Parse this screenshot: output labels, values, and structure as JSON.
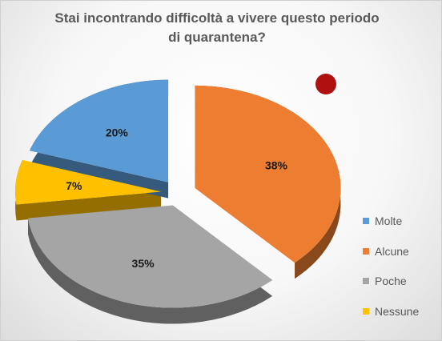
{
  "chart_data": {
    "type": "pie",
    "title": "Stai incontrando difficoltà a vivere questo periodo di quarantena?",
    "categories": [
      "Molte",
      "Alcune",
      "Poche",
      "Nessune"
    ],
    "values": [
      20,
      38,
      35,
      7
    ],
    "labels": [
      "20%",
      "38%",
      "35%",
      "7%"
    ],
    "colors": [
      "#5B9BD5",
      "#ED7D31",
      "#A5A5A5",
      "#FFC000"
    ],
    "legend_position": "right",
    "exploded": true
  },
  "annotation": {
    "color": "#B01010"
  }
}
